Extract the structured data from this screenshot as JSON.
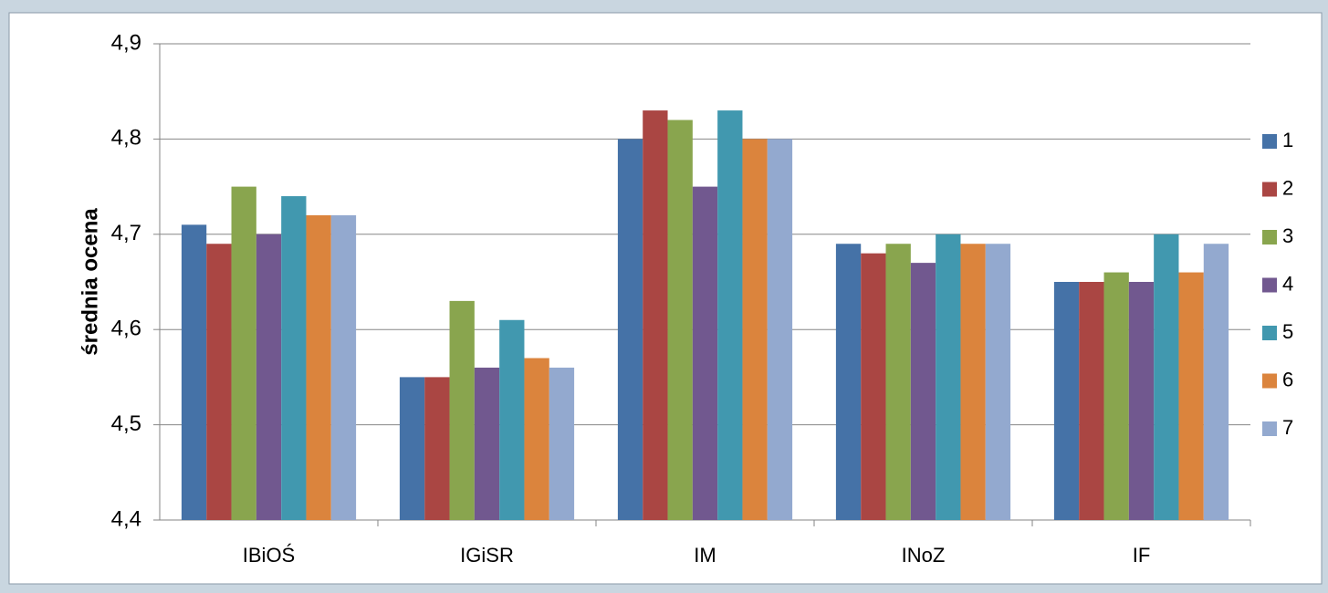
{
  "chart_data": {
    "type": "bar",
    "y_label": "średnia ocena",
    "categories": [
      "IBiOŚ",
      "IGiSR",
      "IM",
      "INoZ",
      "IF"
    ],
    "series": [
      {
        "name": "1",
        "color": "#4572A7",
        "values": [
          4.71,
          4.55,
          4.8,
          4.69,
          4.65
        ]
      },
      {
        "name": "2",
        "color": "#AA4643",
        "values": [
          4.69,
          4.55,
          4.83,
          4.68,
          4.65
        ]
      },
      {
        "name": "3",
        "color": "#89A54E",
        "values": [
          4.75,
          4.63,
          4.82,
          4.69,
          4.66
        ]
      },
      {
        "name": "4",
        "color": "#71588F",
        "values": [
          4.7,
          4.56,
          4.75,
          4.67,
          4.65
        ]
      },
      {
        "name": "5",
        "color": "#4198AF",
        "values": [
          4.74,
          4.61,
          4.83,
          4.7,
          4.7
        ]
      },
      {
        "name": "6",
        "color": "#DB843D",
        "values": [
          4.72,
          4.57,
          4.8,
          4.69,
          4.66
        ]
      },
      {
        "name": "7",
        "color": "#93A9CF",
        "values": [
          4.72,
          4.56,
          4.8,
          4.69,
          4.69
        ]
      }
    ],
    "ylim": [
      4.4,
      4.9
    ],
    "yticks": [
      {
        "value": 4.4,
        "label": "4,4"
      },
      {
        "value": 4.5,
        "label": "4,5"
      },
      {
        "value": 4.6,
        "label": "4,6"
      },
      {
        "value": 4.7,
        "label": "4,7"
      },
      {
        "value": 4.8,
        "label": "4,8"
      },
      {
        "value": 4.9,
        "label": "4,9"
      }
    ],
    "grid": true,
    "legend": "right"
  }
}
